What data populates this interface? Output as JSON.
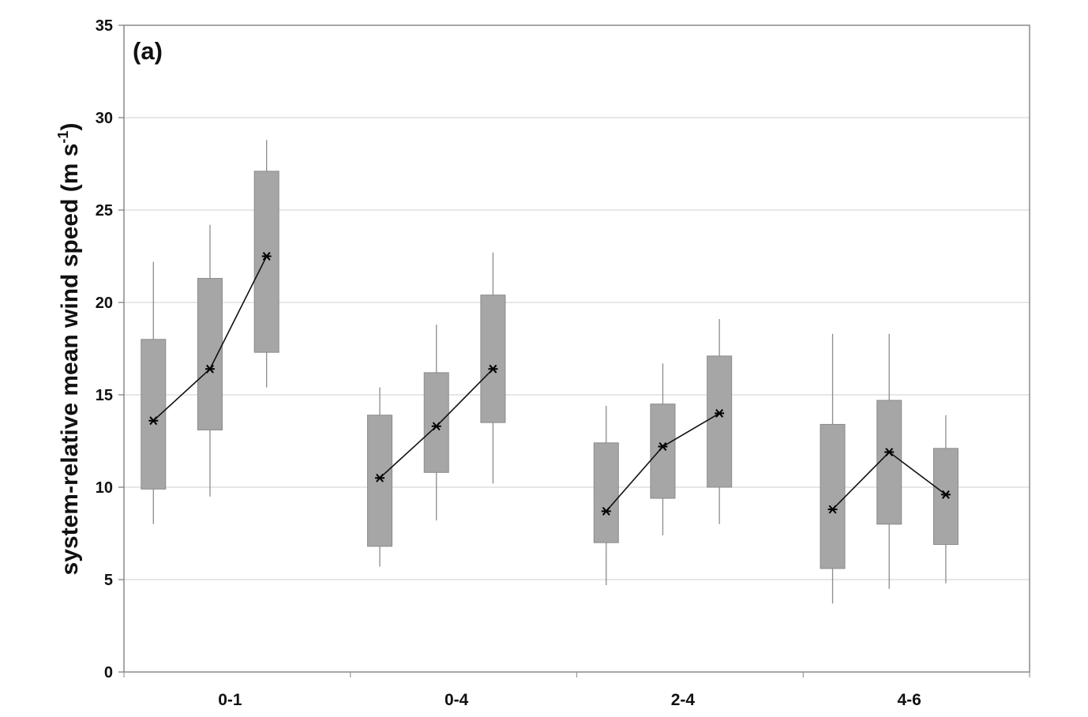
{
  "chart_data": {
    "type": "box",
    "panel_label": "(a)",
    "ylabel_main": "system-relative mean wind speed (m s",
    "ylabel_sup": "-1",
    "ylabel_close": ")",
    "ylim": [
      0,
      35
    ],
    "yticks": [
      "0",
      "5",
      "10",
      "15",
      "20",
      "25",
      "30",
      "35"
    ],
    "ytick_values": [
      0,
      5,
      10,
      15,
      20,
      25,
      30,
      35
    ],
    "grid": true,
    "box_color": "#a6a6a6",
    "whisker_color": "#8c8c8c",
    "line_color": "#111111",
    "categories": [
      "0-1",
      "0-4",
      "2-4",
      "4-6"
    ],
    "groups": [
      {
        "category": "0-1",
        "boxes": [
          {
            "whisker_low": 8.0,
            "q1": 9.9,
            "mean": 13.6,
            "q3": 18.0,
            "whisker_high": 22.2
          },
          {
            "whisker_low": 9.5,
            "q1": 13.1,
            "mean": 16.4,
            "q3": 21.3,
            "whisker_high": 24.2
          },
          {
            "whisker_low": 15.4,
            "q1": 17.3,
            "mean": 22.5,
            "q3": 27.1,
            "whisker_high": 28.8
          }
        ]
      },
      {
        "category": "0-4",
        "boxes": [
          {
            "whisker_low": 5.7,
            "q1": 6.8,
            "mean": 10.5,
            "q3": 13.9,
            "whisker_high": 15.4
          },
          {
            "whisker_low": 8.2,
            "q1": 10.8,
            "mean": 13.3,
            "q3": 16.2,
            "whisker_high": 18.8
          },
          {
            "whisker_low": 10.2,
            "q1": 13.5,
            "mean": 16.4,
            "q3": 20.4,
            "whisker_high": 22.7
          }
        ]
      },
      {
        "category": "2-4",
        "boxes": [
          {
            "whisker_low": 4.7,
            "q1": 7.0,
            "mean": 8.7,
            "q3": 12.4,
            "whisker_high": 14.4
          },
          {
            "whisker_low": 7.4,
            "q1": 9.4,
            "mean": 12.2,
            "q3": 14.5,
            "whisker_high": 16.7
          },
          {
            "whisker_low": 8.0,
            "q1": 10.0,
            "mean": 14.0,
            "q3": 17.1,
            "whisker_high": 19.1
          }
        ]
      },
      {
        "category": "4-6",
        "boxes": [
          {
            "whisker_low": 3.7,
            "q1": 5.6,
            "mean": 8.8,
            "q3": 13.4,
            "whisker_high": 18.3
          },
          {
            "whisker_low": 4.5,
            "q1": 8.0,
            "mean": 11.9,
            "q3": 14.7,
            "whisker_high": 18.3
          },
          {
            "whisker_low": 4.8,
            "q1": 6.9,
            "mean": 9.6,
            "q3": 12.1,
            "whisker_high": 13.9
          }
        ]
      }
    ]
  }
}
